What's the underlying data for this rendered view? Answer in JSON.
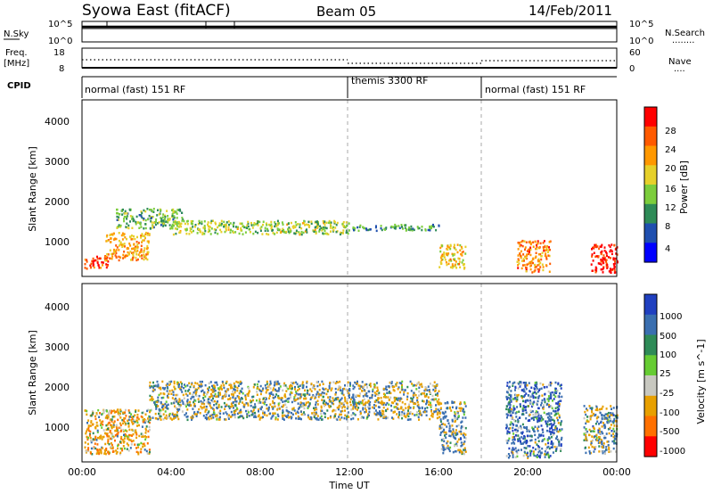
{
  "header": {
    "station": "Syowa East (fitACF)",
    "beam": "Beam 05",
    "date": "14/Feb/2011"
  },
  "noise_panel": {
    "left_label": "N.Sky",
    "right_label": "N.Search",
    "tick_hi": "10^5",
    "tick_lo": "10^0",
    "ticks_right_hi": "10^5",
    "ticks_right_lo": "10^0",
    "legend_line": "........"
  },
  "freq_panel": {
    "left_label_1": "Freq.",
    "left_label_2": "[MHz]",
    "tick_hi": "18",
    "tick_lo": "8",
    "right_label": "Nave",
    "tick_r_hi": "60",
    "tick_r_lo": "0",
    "legend_line": "...."
  },
  "cpid": {
    "label": "CPID",
    "segments": [
      {
        "text": "normal (fast) 151 RF",
        "start_hour": 0
      },
      {
        "text": "themis 3300 RF",
        "start_hour": 12
      },
      {
        "text": "normal (fast) 151 RF",
        "start_hour": 18
      }
    ]
  },
  "power_panel": {
    "ylabel": "Slant Range [km]",
    "yticks": [
      "1000",
      "2000",
      "3000",
      "4000"
    ],
    "colorbar_label": "Power [dB]",
    "colorbar_ticks": [
      "4",
      "8",
      "12",
      "16",
      "20",
      "24",
      "28"
    ],
    "colors": [
      "#0000ff",
      "#1f4faf",
      "#2e8b57",
      "#7ccd3c",
      "#e6d02a",
      "#ff9800",
      "#ff5a00",
      "#ff0000"
    ]
  },
  "velocity_panel": {
    "ylabel": "Slant Range [km]",
    "yticks": [
      "1000",
      "2000",
      "3000",
      "4000"
    ],
    "colorbar_label": "Velocity [m s^-1]",
    "colorbar_ticks": [
      "1000",
      "500",
      "100",
      "25",
      "-25",
      "-100",
      "-500",
      "-1000"
    ],
    "colors": [
      "#2040c0",
      "#3a6fb0",
      "#2e8b57",
      "#66cc33",
      "#c8c8c0",
      "#e8a000",
      "#ff7000",
      "#ff0000"
    ]
  },
  "x_axis": {
    "label": "Time UT",
    "ticks": [
      "00:00",
      "04:00",
      "08:00",
      "12:00",
      "16:00",
      "20:00",
      "00:00"
    ]
  },
  "chart_data": {
    "type": "heatmap",
    "title": "Syowa East (fitACF)  Beam 05  14/Feb/2011",
    "xlabel": "Time UT",
    "ylabel": "Slant Range [km]",
    "xlim_hours": [
      0,
      24
    ],
    "ylim_km": [
      180,
      4600
    ],
    "grid": false,
    "legend_placement": "right colorbars",
    "cpid_boundaries_hours": [
      12,
      18
    ],
    "power_scale_db": [
      0,
      30
    ],
    "velocity_scale": [
      -1000,
      1000
    ],
    "echo_regions": [
      {
        "panel": "power",
        "t0": 0.1,
        "t1": 1.2,
        "r0": 400,
        "r1": 700,
        "value": 26
      },
      {
        "panel": "power",
        "t0": 1.0,
        "t1": 3.0,
        "r0": 600,
        "r1": 1300,
        "value": 20
      },
      {
        "panel": "power",
        "t0": 1.5,
        "t1": 4.5,
        "r0": 1400,
        "r1": 1900,
        "value": 12
      },
      {
        "panel": "power",
        "t0": 4.0,
        "t1": 12.0,
        "r0": 1250,
        "r1": 1600,
        "value": 14
      },
      {
        "panel": "power",
        "t0": 12.0,
        "t1": 16.0,
        "r0": 1350,
        "r1": 1500,
        "value": 10
      },
      {
        "panel": "power",
        "t0": 16.0,
        "t1": 17.2,
        "r0": 400,
        "r1": 1000,
        "value": 18
      },
      {
        "panel": "power",
        "t0": 19.5,
        "t1": 21.0,
        "r0": 300,
        "r1": 1100,
        "value": 22
      },
      {
        "panel": "power",
        "t0": 22.8,
        "t1": 24.0,
        "r0": 300,
        "r1": 1000,
        "value": 28
      },
      {
        "panel": "velocity",
        "t0": 0.1,
        "t1": 3.0,
        "r0": 400,
        "r1": 1500,
        "value": -300
      },
      {
        "panel": "velocity",
        "t0": 3.0,
        "t1": 16.0,
        "r0": 1250,
        "r1": 2200,
        "value": 0
      },
      {
        "panel": "velocity",
        "t0": 16.0,
        "t1": 17.2,
        "r0": 400,
        "r1": 1700,
        "value": 80
      },
      {
        "panel": "velocity",
        "t0": 19.0,
        "t1": 21.5,
        "r0": 300,
        "r1": 2200,
        "value": 300
      },
      {
        "panel": "velocity",
        "t0": 22.5,
        "t1": 24.0,
        "r0": 400,
        "r1": 1600,
        "value": 60
      }
    ]
  }
}
